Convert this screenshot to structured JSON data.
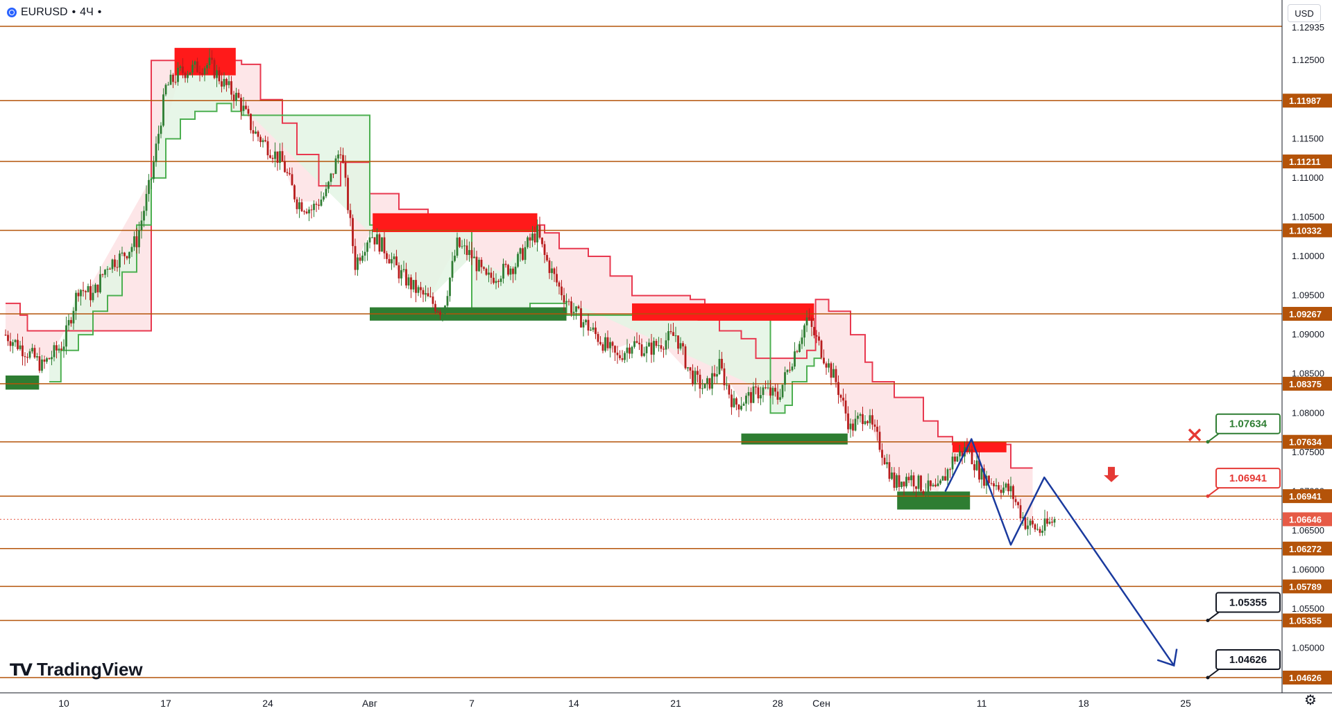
{
  "header": {
    "symbol": "EURUSD",
    "interval": "4Ч",
    "currency_button": "USD"
  },
  "logo": {
    "text": "TradingView"
  },
  "colors": {
    "level_line": "#b45309",
    "level_label_bg": "#b45309",
    "red_zone": "#ff1a1a",
    "green_zone": "#2e7d32",
    "resistance_line": "#e8384f",
    "support_line": "#4caf50",
    "resistance_fill": "#fde2e4",
    "support_fill": "#e3f4e4",
    "candle_up": "#2e7d32",
    "candle_down": "#b71c1c",
    "projection": "#1a3a9e",
    "current_price": "#e65a46"
  },
  "chart_data": {
    "type": "candlestick",
    "y_axis": {
      "range": [
        1.0448,
        1.12935
      ],
      "ticks": [
        "1.12500",
        "1.12000",
        "1.11500",
        "1.11000",
        "1.10500",
        "1.10000",
        "1.09500",
        "1.09000",
        "1.08500",
        "1.08000",
        "1.07500",
        "1.07000",
        "1.06500",
        "1.06000",
        "1.05500",
        "1.05000"
      ],
      "top_partial_label": "1.12935"
    },
    "x_axis": {
      "ticks": [
        {
          "label": "10",
          "day": 0
        },
        {
          "label": "17",
          "day": 7
        },
        {
          "label": "24",
          "day": 14
        },
        {
          "label": "Авг",
          "day": 21
        },
        {
          "label": "7",
          "day": 28
        },
        {
          "label": "14",
          "day": 35
        },
        {
          "label": "21",
          "day": 42
        },
        {
          "label": "28",
          "day": 49
        },
        {
          "label": "Сен",
          "day": 52
        },
        {
          "label": "11",
          "day": 63
        },
        {
          "label": "18",
          "day": 70
        },
        {
          "label": "25",
          "day": 77
        }
      ]
    },
    "horizontal_levels": [
      {
        "price": "1.12935",
        "label": ""
      },
      {
        "price": "1.11987",
        "label": "1.11987"
      },
      {
        "price": "1.11211",
        "label": "1.11211"
      },
      {
        "price": "1.10332",
        "label": "1.10332"
      },
      {
        "price": "1.09267",
        "label": "1.09267"
      },
      {
        "price": "1.08375",
        "label": "1.08375"
      },
      {
        "price": "1.07634",
        "label": "1.07634"
      },
      {
        "price": "1.06941",
        "label": "1.06941"
      },
      {
        "price": "1.06272",
        "label": "1.06272"
      },
      {
        "price": "1.05789",
        "label": "1.05789"
      },
      {
        "price": "1.05355",
        "label": "1.05355"
      },
      {
        "price": "1.04626",
        "label": "1.04626"
      }
    ],
    "current_price": "1.06646",
    "annotations": [
      {
        "text": "1.07634",
        "kind": "green",
        "marker": "cross"
      },
      {
        "text": "1.06941",
        "kind": "red",
        "marker": "down-arrow"
      },
      {
        "text": "1.05355",
        "kind": "black"
      },
      {
        "text": "1.04626",
        "kind": "black"
      }
    ],
    "zones": [
      {
        "color": "red",
        "day_from": 7.6,
        "day_to": 11.8,
        "price_from": 1.1231,
        "price_to": 1.1266
      },
      {
        "color": "red",
        "day_from": 21.2,
        "day_to": 32.5,
        "price_from": 1.1031,
        "price_to": 1.1055
      },
      {
        "color": "green",
        "day_from": 21.0,
        "day_to": 34.5,
        "price_from": 1.0918,
        "price_to": 1.0935
      },
      {
        "color": "red",
        "day_from": 39.0,
        "day_to": 51.5,
        "price_from": 1.0918,
        "price_to": 1.094
      },
      {
        "color": "red",
        "day_from": 43.5,
        "day_to": 51.5,
        "price_from": 1.0918,
        "price_to": 1.093
      },
      {
        "color": "green",
        "day_from": 46.5,
        "day_to": 53.8,
        "price_from": 1.076,
        "price_to": 1.0774
      },
      {
        "color": "red",
        "day_from": 61.0,
        "day_to": 64.7,
        "price_from": 1.075,
        "price_to": 1.0763
      },
      {
        "color": "green",
        "day_from": 57.2,
        "day_to": 62.2,
        "price_from": 1.0677,
        "price_to": 1.07
      },
      {
        "color": "green",
        "day_from": -4.0,
        "day_to": -1.7,
        "price_from": 1.083,
        "price_to": 1.0848
      }
    ],
    "resistance_band": {
      "days": [
        -4,
        -3,
        -2.5,
        -1,
        6,
        8,
        10,
        11,
        12,
        12.2,
        13.5,
        15,
        16,
        17.5,
        19,
        20,
        21,
        23,
        25,
        27,
        29,
        31,
        32.5,
        33,
        34,
        36,
        37.5,
        39,
        41,
        43,
        44,
        45,
        46.5,
        47.5,
        49,
        51,
        51.6,
        52.5,
        54,
        55,
        55.5,
        57,
        59,
        60,
        61,
        62,
        64,
        65,
        66.5
      ],
      "values": [
        1.094,
        1.0925,
        1.0905,
        1.0905,
        1.125,
        1.125,
        1.125,
        1.125,
        1.125,
        1.1245,
        1.12,
        1.117,
        1.113,
        1.109,
        1.112,
        1.112,
        1.108,
        1.106,
        1.105,
        1.104,
        1.104,
        1.104,
        1.104,
        1.103,
        1.101,
        1.1,
        1.0975,
        1.095,
        1.095,
        1.0945,
        1.092,
        1.0905,
        1.0895,
        1.087,
        1.087,
        1.088,
        1.0945,
        1.093,
        1.09,
        1.0865,
        1.084,
        1.082,
        1.079,
        1.077,
        1.076,
        1.076,
        1.076,
        1.073,
        1.073
      ]
    },
    "support_band": {
      "days": [
        -1,
        -0.2,
        1,
        2,
        3,
        4,
        5,
        6,
        7,
        8,
        9,
        10.5,
        11.5,
        12,
        12.2,
        21.0,
        25,
        28,
        30,
        32,
        33,
        34.5,
        48.5,
        49.5,
        50,
        51,
        51.5,
        52
      ],
      "values": [
        1.084,
        1.088,
        1.09,
        1.093,
        1.095,
        1.098,
        1.104,
        1.11,
        1.115,
        1.1175,
        1.1185,
        1.1195,
        1.1185,
        1.1185,
        1.118,
        1.104,
        1.104,
        1.0925,
        1.0925,
        1.094,
        1.094,
        1.0925,
        1.08,
        1.081,
        1.084,
        1.086,
        1.087,
        1.087
      ]
    },
    "candles_close_path": {
      "days": [
        -4,
        -3,
        -2,
        -1.5,
        -1,
        0,
        1,
        2,
        3,
        4,
        5,
        6,
        7,
        8,
        9,
        10,
        11,
        12,
        13,
        14,
        15,
        16,
        17,
        18,
        19,
        20,
        21,
        22,
        23,
        24,
        25,
        26,
        27,
        28,
        29,
        30,
        31,
        32,
        32.5,
        33,
        34,
        35,
        36,
        37,
        38,
        39,
        40,
        41,
        42,
        43,
        44,
        45,
        46,
        47,
        48,
        49,
        50,
        51,
        52,
        53,
        54,
        55,
        56,
        57,
        58,
        59,
        60,
        61,
        62,
        63,
        64,
        65,
        66,
        67,
        68
      ],
      "values": [
        1.09,
        1.0885,
        1.087,
        1.086,
        1.087,
        1.089,
        1.096,
        1.095,
        1.099,
        1.1,
        1.102,
        1.11,
        1.1215,
        1.1235,
        1.124,
        1.1245,
        1.122,
        1.12,
        1.116,
        1.114,
        1.112,
        1.107,
        1.106,
        1.108,
        1.114,
        1.099,
        1.103,
        1.101,
        1.098,
        1.096,
        1.0945,
        1.093,
        1.1015,
        1.1,
        1.097,
        1.098,
        1.099,
        1.102,
        1.103,
        1.1,
        1.096,
        1.093,
        1.091,
        1.089,
        1.087,
        1.089,
        1.088,
        1.089,
        1.09,
        1.085,
        1.083,
        1.086,
        1.081,
        1.082,
        1.083,
        1.082,
        1.087,
        1.092,
        1.088,
        1.084,
        1.078,
        1.08,
        1.076,
        1.071,
        1.072,
        1.0705,
        1.07,
        1.074,
        1.0755,
        1.072,
        1.071,
        1.07,
        1.066,
        1.065,
        1.0664
      ]
    },
    "projection_path": {
      "days": [
        60.5,
        62.3,
        65.0,
        67.3,
        76.2
      ],
      "values": [
        1.07,
        1.0767,
        1.0632,
        1.0718,
        1.0478
      ]
    }
  }
}
